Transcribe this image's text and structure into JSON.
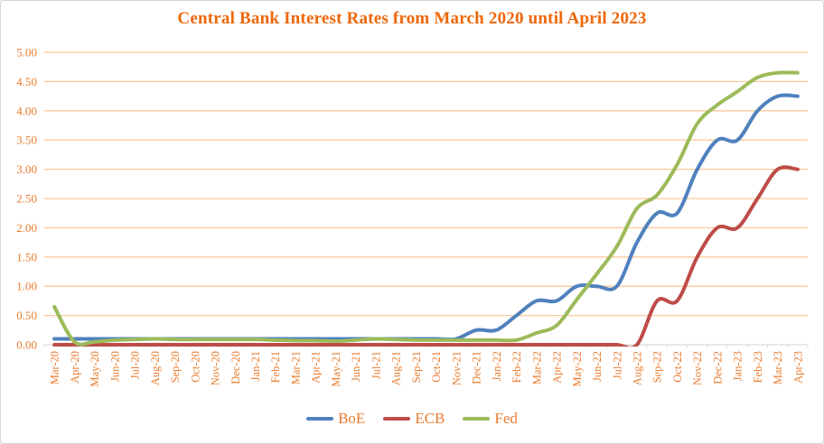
{
  "title": "Central Bank Interest Rates from March 2020 until April 2023",
  "chart_data": {
    "type": "line",
    "smoothed": true,
    "title": "Central Bank Interest Rates from March 2020 until April 2023",
    "categories": [
      "Mar-20",
      "Apr-20",
      "May-20",
      "Jun-20",
      "Jul-20",
      "Aug-20",
      "Sep-20",
      "Oct-20",
      "Nov-20",
      "Dec-20",
      "Jan-21",
      "Feb-21",
      "Mar-21",
      "Apr-21",
      "May-21",
      "Jun-21",
      "Jul-21",
      "Aug-21",
      "Sep-21",
      "Oct-21",
      "Nov-21",
      "Dec-21",
      "Jan-22",
      "Feb-22",
      "Mar-22",
      "Apr-22",
      "May-22",
      "Jun-22",
      "Jul-22",
      "Aug-22",
      "Sep-22",
      "Oct-22",
      "Nov-22",
      "Dec-22",
      "Jan-23",
      "Feb-23",
      "Mar-23",
      "Apr-23"
    ],
    "series": [
      {
        "name": "BoE",
        "color": "#4F81BD",
        "values": [
          0.1,
          0.1,
          0.1,
          0.1,
          0.1,
          0.1,
          0.1,
          0.1,
          0.1,
          0.1,
          0.1,
          0.1,
          0.1,
          0.1,
          0.1,
          0.1,
          0.1,
          0.1,
          0.1,
          0.1,
          0.1,
          0.25,
          0.25,
          0.5,
          0.75,
          0.75,
          1.0,
          1.0,
          1.0,
          1.75,
          2.25,
          2.25,
          3.0,
          3.5,
          3.5,
          4.0,
          4.25,
          4.25
        ]
      },
      {
        "name": "ECB",
        "color": "#BE4C48",
        "values": [
          0.0,
          0.0,
          0.0,
          0.0,
          0.0,
          0.0,
          0.0,
          0.0,
          0.0,
          0.0,
          0.0,
          0.0,
          0.0,
          0.0,
          0.0,
          0.0,
          0.0,
          0.0,
          0.0,
          0.0,
          0.0,
          0.0,
          0.0,
          0.0,
          0.0,
          0.0,
          0.0,
          0.0,
          0.0,
          0.0,
          0.75,
          0.75,
          1.5,
          2.0,
          2.0,
          2.5,
          3.0,
          3.0
        ]
      },
      {
        "name": "Fed",
        "color": "#9CBB59",
        "values": [
          0.65,
          0.05,
          0.05,
          0.08,
          0.09,
          0.1,
          0.09,
          0.09,
          0.09,
          0.09,
          0.09,
          0.08,
          0.07,
          0.07,
          0.06,
          0.08,
          0.1,
          0.09,
          0.08,
          0.08,
          0.08,
          0.08,
          0.08,
          0.08,
          0.2,
          0.33,
          0.77,
          1.21,
          1.68,
          2.33,
          2.56,
          3.08,
          3.78,
          4.1,
          4.33,
          4.57,
          4.65,
          4.65
        ]
      }
    ],
    "ylim": [
      0,
      5
    ],
    "y_ticks": [
      "0.00",
      "0.50",
      "1.00",
      "1.50",
      "2.00",
      "2.50",
      "3.00",
      "3.50",
      "4.00",
      "4.50",
      "5.00"
    ],
    "xlabel": "",
    "ylabel": "",
    "grid": true,
    "legend_position": "bottom"
  },
  "style": {
    "title_color": "#ED6708",
    "axis_label_color": "#EB7C2E",
    "legend_text_color": "#EB7C2E",
    "gridline_color": "#FBC999",
    "axis_line_color": "#D9D9D9",
    "border_color": "#D5D5D5",
    "background": "#FFFFFF"
  }
}
